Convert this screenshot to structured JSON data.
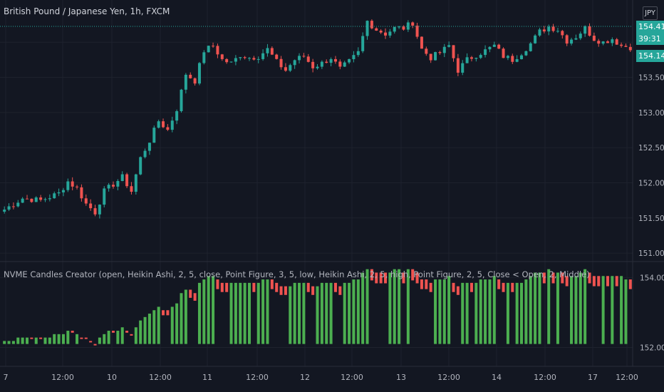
{
  "header": {
    "symbol_title": "British Pound / Japanese Yen, 1h, FXCM",
    "currency": "JPY"
  },
  "price_tags": {
    "ask": "154.414",
    "countdown": "39:31",
    "last": "154.147"
  },
  "indicator": {
    "title": "NVME Candles Creator (open, Heikin Ashi, 2, 5, close, Point Figure, 3, 5, low, Heikin Ashi, 2, 5, high, Point Figure, 2, 5, Close < Open, 2, Middle)"
  },
  "colors": {
    "background": "#131722",
    "up": "#26a69a",
    "down": "#ef5350",
    "ind_up": "#4caf50",
    "ind_down": "#ef5350",
    "grid": "#1e222d",
    "axis_text": "#b2b5be"
  },
  "chart_data": [
    {
      "type": "candlestick",
      "x_ticks": [
        "7",
        "12:00",
        "10",
        "12:00",
        "11",
        "12:00",
        "12",
        "12:00",
        "13",
        "12:00",
        "14",
        "12:00",
        "17",
        "12:00"
      ],
      "y_ticks": [
        151.0,
        151.5,
        152.0,
        152.5,
        153.0,
        153.5,
        154.0
      ],
      "ylim": [
        150.9,
        154.6
      ],
      "grid": true,
      "close_path": [
        [
          0,
          151.62
        ],
        [
          4,
          151.78
        ],
        [
          8,
          151.75
        ],
        [
          12,
          151.85
        ],
        [
          14,
          152.02
        ],
        [
          16,
          151.92
        ],
        [
          18,
          151.7
        ],
        [
          20,
          151.58
        ],
        [
          22,
          151.88
        ],
        [
          24,
          151.98
        ],
        [
          26,
          152.08
        ],
        [
          28,
          151.88
        ],
        [
          30,
          152.35
        ],
        [
          32,
          152.6
        ],
        [
          34,
          152.88
        ],
        [
          36,
          152.75
        ],
        [
          38,
          153.05
        ],
        [
          40,
          153.55
        ],
        [
          42,
          153.45
        ],
        [
          44,
          153.88
        ],
        [
          46,
          153.95
        ],
        [
          48,
          153.75
        ],
        [
          50,
          153.7
        ],
        [
          52,
          153.82
        ],
        [
          54,
          153.78
        ],
        [
          56,
          153.8
        ],
        [
          58,
          153.9
        ],
        [
          60,
          153.72
        ],
        [
          62,
          153.6
        ],
        [
          64,
          153.75
        ],
        [
          66,
          153.8
        ],
        [
          68,
          153.65
        ],
        [
          70,
          153.7
        ],
        [
          72,
          153.78
        ],
        [
          74,
          153.62
        ],
        [
          76,
          153.72
        ],
        [
          78,
          153.85
        ],
        [
          80,
          154.3
        ],
        [
          82,
          154.18
        ],
        [
          84,
          154.12
        ],
        [
          86,
          154.2
        ],
        [
          88,
          154.2
        ],
        [
          90,
          154.28
        ],
        [
          92,
          153.9
        ],
        [
          94,
          153.78
        ],
        [
          96,
          153.85
        ],
        [
          98,
          153.95
        ],
        [
          100,
          153.6
        ],
        [
          102,
          153.75
        ],
        [
          104,
          153.82
        ],
        [
          106,
          153.88
        ],
        [
          108,
          153.95
        ],
        [
          110,
          153.8
        ],
        [
          112,
          153.75
        ],
        [
          114,
          153.85
        ],
        [
          116,
          153.98
        ],
        [
          118,
          154.15
        ],
        [
          120,
          154.22
        ],
        [
          122,
          154.18
        ],
        [
          124,
          154.02
        ],
        [
          126,
          154.08
        ],
        [
          128,
          154.2
        ],
        [
          130,
          154.05
        ],
        [
          132,
          154.0
        ],
        [
          134,
          154.05
        ],
        [
          136,
          153.95
        ],
        [
          138,
          153.93
        ]
      ]
    },
    {
      "type": "bar",
      "y_ticks": [
        152.0,
        154.0
      ],
      "ylim": [
        151.5,
        154.4
      ],
      "baseline": "middle"
    }
  ]
}
